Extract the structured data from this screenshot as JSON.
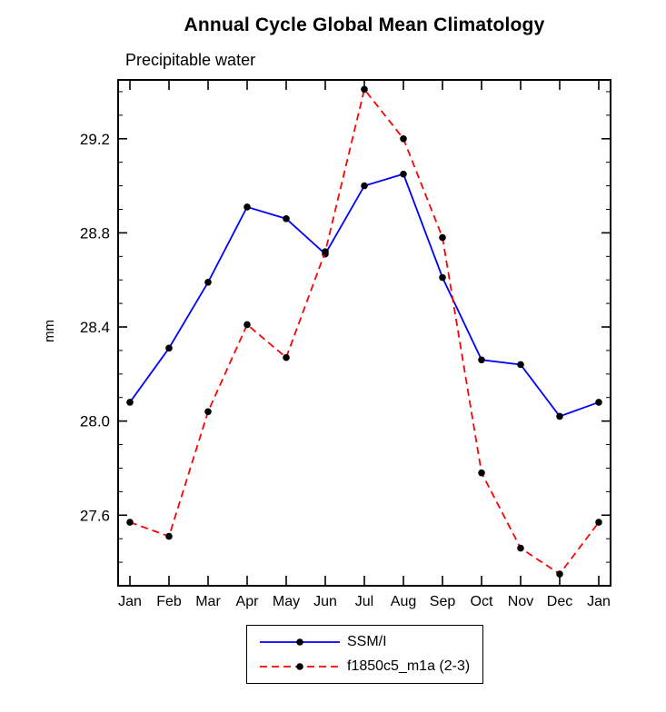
{
  "chart_data": {
    "type": "line",
    "title": "Annual Cycle Global Mean Climatology",
    "subtitle": "Precipitable water",
    "ylabel": "mm",
    "xlabel": "",
    "categories": [
      "Jan",
      "Feb",
      "Mar",
      "Apr",
      "May",
      "Jun",
      "Jul",
      "Aug",
      "Sep",
      "Oct",
      "Nov",
      "Dec",
      "Jan"
    ],
    "ylim": [
      27.3,
      29.45
    ],
    "yticks": [
      27.6,
      28.0,
      28.4,
      28.8,
      29.2
    ],
    "ytick_minor_step": 0.1,
    "grid": false,
    "legend_position": "bottom-center",
    "frame_color": "#000000",
    "series": [
      {
        "name": "SSM/I",
        "color": "#0000ff",
        "style": "solid",
        "marker": "dot",
        "marker_color": "#000000",
        "values": [
          28.08,
          28.31,
          28.59,
          28.91,
          28.86,
          28.71,
          29.0,
          29.05,
          28.61,
          28.26,
          28.24,
          28.02,
          28.08
        ]
      },
      {
        "name": "f1850c5_m1a (2-3)",
        "color": "#ff0000",
        "style": "dashed",
        "marker": "dot",
        "marker_color": "#000000",
        "values": [
          27.57,
          27.51,
          28.04,
          28.41,
          28.27,
          28.72,
          29.41,
          29.2,
          28.78,
          27.78,
          27.46,
          27.35,
          27.57
        ]
      }
    ]
  }
}
